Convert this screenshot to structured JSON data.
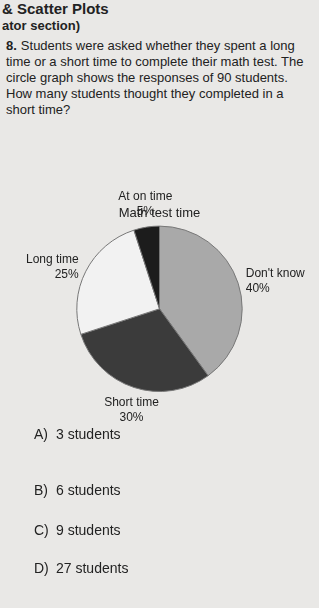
{
  "header": {
    "title": "& Scatter Plots",
    "subtitle": "ator section)"
  },
  "question": {
    "number": "8.",
    "text": "Students were asked whether they spent a long time or a short time to complete their math test. The circle graph shows the responses of 90 students. How many students thought they completed in a short time?"
  },
  "chart_data": {
    "type": "pie",
    "title": "Math test time",
    "categories": [
      "Don't know",
      "Short time",
      "Long time",
      "At on time"
    ],
    "values": [
      40,
      30,
      25,
      5
    ],
    "value_labels": [
      "40%",
      "30%",
      "25%",
      "5%"
    ],
    "colors": [
      "#a9a9a9",
      "#3b3b3b",
      "#f2f2f2",
      "#1c1c1c"
    ],
    "data_labels": true
  },
  "choices": [
    {
      "letter": "A)",
      "text": "3 students"
    },
    {
      "letter": "B)",
      "text": "6 students"
    },
    {
      "letter": "C)",
      "text": "9 students"
    },
    {
      "letter": "D)",
      "text": "27 students"
    }
  ]
}
